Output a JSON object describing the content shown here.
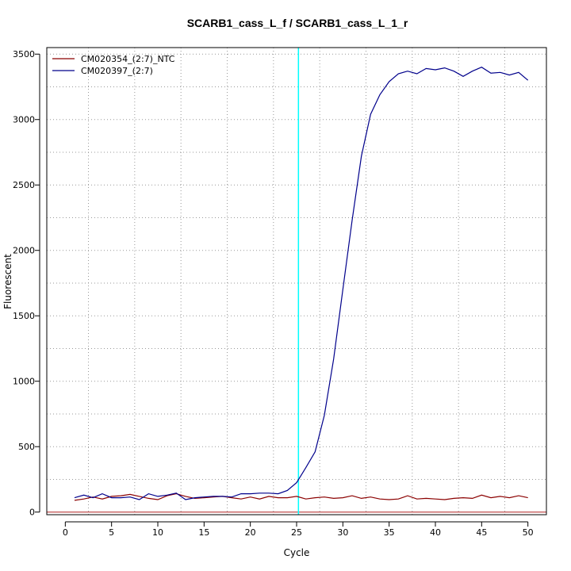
{
  "chart_data": {
    "type": "line",
    "title": "SCARB1_cass_L_f / SCARB1_cass_L_1_r",
    "xlabel": "Cycle",
    "ylabel": "Fluorescent",
    "xlim": [
      -2,
      52
    ],
    "ylim": [
      -20,
      3550
    ],
    "xticks": [
      0,
      5,
      10,
      15,
      20,
      25,
      30,
      35,
      40,
      45,
      50
    ],
    "yticks": [
      0,
      500,
      1000,
      1500,
      2000,
      2500,
      3000,
      3500
    ],
    "grid": true,
    "legend_position": "top-left",
    "threshold": {
      "y": 0,
      "color": "#b22222"
    },
    "marker_line": {
      "x": 25.2,
      "color": "#00ffff"
    },
    "series": [
      {
        "name": "CM020354_(2:7)_NTC",
        "color": "#8b0000",
        "x": [
          1,
          2,
          3,
          4,
          5,
          6,
          7,
          8,
          9,
          10,
          11,
          12,
          13,
          14,
          15,
          16,
          17,
          18,
          19,
          20,
          21,
          22,
          23,
          24,
          25,
          26,
          27,
          28,
          29,
          30,
          31,
          32,
          33,
          34,
          35,
          36,
          37,
          38,
          39,
          40,
          41,
          42,
          43,
          44,
          45,
          46,
          47,
          48,
          49,
          50
        ],
        "values": [
          90,
          100,
          115,
          100,
          120,
          125,
          135,
          120,
          105,
          95,
          125,
          140,
          120,
          105,
          110,
          115,
          120,
          110,
          100,
          115,
          100,
          120,
          110,
          110,
          120,
          100,
          110,
          115,
          105,
          110,
          125,
          105,
          115,
          100,
          95,
          100,
          125,
          100,
          105,
          100,
          95,
          105,
          110,
          105,
          130,
          110,
          120,
          110,
          125,
          110
        ]
      },
      {
        "name": "CM020397_(2:7)",
        "color": "#00008b",
        "x": [
          1,
          2,
          3,
          4,
          5,
          6,
          7,
          8,
          9,
          10,
          11,
          12,
          13,
          14,
          15,
          16,
          17,
          18,
          19,
          20,
          21,
          22,
          23,
          24,
          25,
          26,
          27,
          28,
          29,
          30,
          31,
          32,
          33,
          34,
          35,
          36,
          37,
          38,
          39,
          40,
          41,
          42,
          43,
          44,
          45,
          46,
          47,
          48,
          49,
          50
        ],
        "values": [
          110,
          130,
          110,
          140,
          110,
          110,
          115,
          95,
          140,
          120,
          130,
          145,
          95,
          110,
          115,
          120,
          120,
          115,
          140,
          140,
          145,
          145,
          140,
          165,
          225,
          340,
          460,
          740,
          1170,
          1700,
          2230,
          2720,
          3040,
          3190,
          3290,
          3350,
          3370,
          3350,
          3390,
          3380,
          3395,
          3370,
          3330,
          3370,
          3400,
          3355,
          3360,
          3340,
          3360,
          3300
        ]
      }
    ]
  }
}
